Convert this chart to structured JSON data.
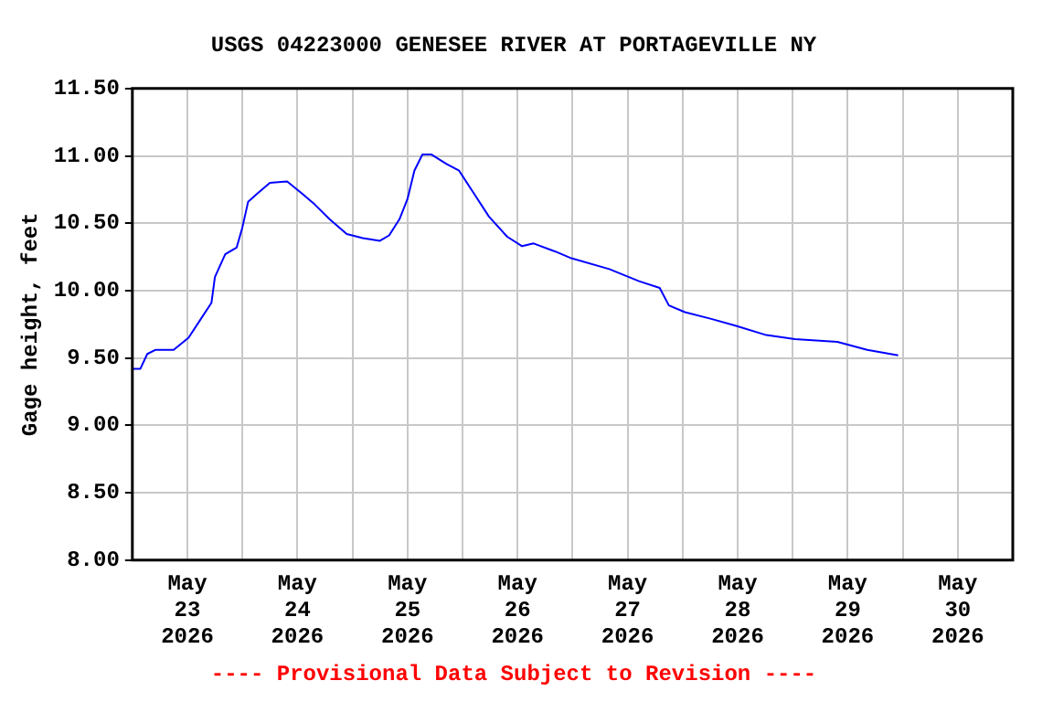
{
  "chart_data": {
    "type": "line",
    "title": "USGS 04223000 GENESEE RIVER AT PORTAGEVILLE NY",
    "ylabel": "Gage height, feet",
    "annotations": [
      "---- Provisional Data Subject to Revision ----"
    ],
    "x": [
      "2026-05-23T00:00",
      "2026-05-23T01:45",
      "2026-05-23T03:15",
      "2026-05-23T05:00",
      "2026-05-23T09:00",
      "2026-05-23T12:15",
      "2026-05-23T14:45",
      "2026-05-23T17:15",
      "2026-05-23T18:00",
      "2026-05-23T20:15",
      "2026-05-23T22:45",
      "2026-05-24T00:00",
      "2026-05-24T01:15",
      "2026-05-24T03:15",
      "2026-05-24T06:00",
      "2026-05-24T09:45",
      "2026-05-24T13:00",
      "2026-05-24T15:45",
      "2026-05-24T19:00",
      "2026-05-24T22:45",
      "2026-05-25T02:15",
      "2026-05-25T06:00",
      "2026-05-25T08:00",
      "2026-05-25T10:15",
      "2026-05-25T12:00",
      "2026-05-25T13:30",
      "2026-05-25T15:15",
      "2026-05-25T17:15",
      "2026-05-25T20:30",
      "2026-05-25T23:15",
      "2026-05-26T02:30",
      "2026-05-26T05:45",
      "2026-05-26T09:45",
      "2026-05-26T13:00",
      "2026-05-26T15:30",
      "2026-05-26T20:15",
      "2026-05-26T23:45",
      "2026-05-27T08:00",
      "2026-05-27T14:30",
      "2026-05-27T19:00",
      "2026-05-27T21:00",
      "2026-05-28T00:30",
      "2026-05-28T06:15",
      "2026-05-28T11:30",
      "2026-05-28T18:15",
      "2026-05-29T00:30",
      "2026-05-29T09:45",
      "2026-05-29T16:15",
      "2026-05-29T23:00"
    ],
    "series": [
      {
        "color": "#0000ff",
        "values": [
          9.42,
          9.42,
          9.53,
          9.56,
          9.56,
          9.65,
          9.78,
          9.91,
          10.1,
          10.27,
          10.32,
          10.47,
          10.66,
          10.72,
          10.8,
          10.81,
          10.72,
          10.64,
          10.53,
          10.42,
          10.39,
          10.37,
          10.41,
          10.53,
          10.68,
          10.89,
          11.01,
          11.01,
          10.94,
          10.89,
          10.72,
          10.55,
          10.4,
          10.33,
          10.35,
          10.29,
          10.24,
          10.16,
          10.07,
          10.02,
          9.89,
          9.84,
          9.79,
          9.74,
          9.67,
          9.64,
          9.62,
          9.56,
          9.52
        ]
      }
    ],
    "xlim": [
      "2026-05-23",
      "2026-05-31"
    ],
    "xticks": [
      {
        "value": "2026-05-23T12:00",
        "label": "May\n23\n2026"
      },
      {
        "value": "2026-05-24T12:00",
        "label": "May\n24\n2026"
      },
      {
        "value": "2026-05-25T12:00",
        "label": "May\n25\n2026"
      },
      {
        "value": "2026-05-26T12:00",
        "label": "May\n26\n2026"
      },
      {
        "value": "2026-05-27T12:00",
        "label": "May\n27\n2026"
      },
      {
        "value": "2026-05-28T12:00",
        "label": "May\n28\n2026"
      },
      {
        "value": "2026-05-29T12:00",
        "label": "May\n29\n2026"
      },
      {
        "value": "2026-05-30T12:00",
        "label": "May\n30\n2026"
      },
      {
        "value": "2026-05-24",
        "label": null
      },
      {
        "value": "2026-05-25",
        "label": null
      },
      {
        "value": "2026-05-26",
        "label": null
      },
      {
        "value": "2026-05-27",
        "label": null
      },
      {
        "value": "2026-05-28",
        "label": null
      },
      {
        "value": "2026-05-29",
        "label": null
      },
      {
        "value": "2026-05-30",
        "label": null
      }
    ],
    "ylim": [
      8,
      11.5
    ],
    "yticks": [
      {
        "value": 8,
        "label": "8.00"
      },
      {
        "value": 8.5,
        "label": "8.50"
      },
      {
        "value": 9,
        "label": "9.00"
      },
      {
        "value": 9.5,
        "label": "9.50"
      },
      {
        "value": 10,
        "label": "10.00"
      },
      {
        "value": 10.5,
        "label": "10.50"
      },
      {
        "value": 11,
        "label": "11.00"
      },
      {
        "value": 11.5,
        "label": "11.50"
      }
    ],
    "grid": true,
    "legend": false,
    "marker": "none",
    "line_style": "solid"
  }
}
